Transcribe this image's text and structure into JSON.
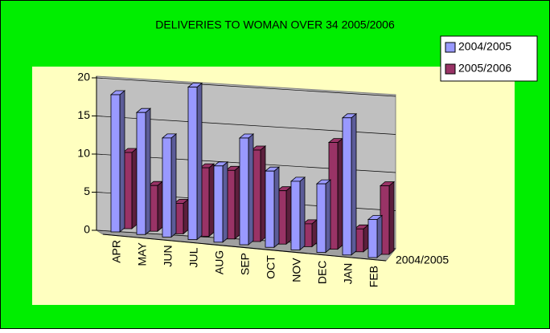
{
  "chart_data": {
    "type": "bar3d",
    "title": "DELIVERIES TO WOMAN OVER 34 2005/2006",
    "categories": [
      "APR",
      "MAY",
      "JUN",
      "JUL",
      "AUG",
      "SEP",
      "OCT",
      "NOV",
      "DEC",
      "JAN",
      "FEB"
    ],
    "series": [
      {
        "name": "2004/2005",
        "color": "#9999ff",
        "values": [
          18,
          16,
          13,
          20,
          10,
          14,
          10,
          9,
          9,
          18,
          5
        ]
      },
      {
        "name": "2005/2006",
        "color": "#993366",
        "values": [
          10,
          6,
          4,
          9,
          9,
          12,
          7,
          3,
          14,
          3,
          9
        ]
      }
    ],
    "depth_axis_label": "2004/2005",
    "ylim": [
      0,
      20
    ],
    "yticks": [
      0,
      5,
      10,
      15,
      20
    ],
    "grid": true,
    "legend": "right"
  }
}
